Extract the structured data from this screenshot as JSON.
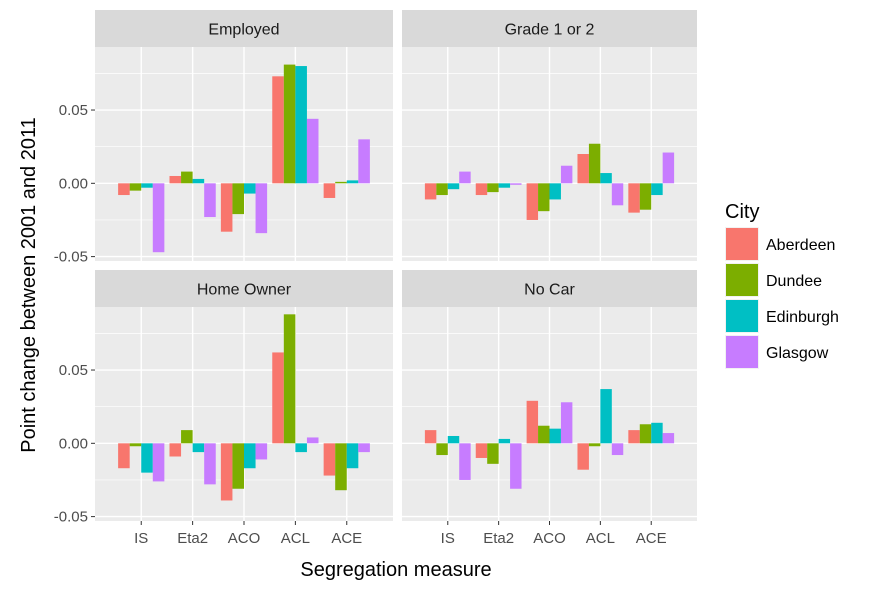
{
  "chart_data": {
    "type": "bar",
    "xlabel": "Segregation measure",
    "ylabel": "Point change between 2001 and 2011",
    "categories": [
      "IS",
      "Eta2",
      "ACO",
      "ACL",
      "ACE"
    ],
    "ylim": [
      -0.053,
      0.093
    ],
    "yticks": [
      -0.05,
      0.0,
      0.05
    ],
    "ytick_labels": [
      "-0.05",
      "0.00",
      "0.05"
    ],
    "grid": true,
    "legend": {
      "title": "City",
      "position": "right",
      "entries": [
        "Aberdeen",
        "Dundee",
        "Edinburgh",
        "Glasgow"
      ]
    },
    "colors": [
      "#F8766D",
      "#7CAE00",
      "#00BFC4",
      "#C77CFF"
    ],
    "panels": [
      {
        "title": "Employed",
        "series": [
          {
            "name": "Aberdeen",
            "values": [
              -0.008,
              0.005,
              -0.033,
              0.073,
              -0.01
            ]
          },
          {
            "name": "Dundee",
            "values": [
              -0.005,
              0.008,
              -0.021,
              0.081,
              0.001
            ]
          },
          {
            "name": "Edinburgh",
            "values": [
              -0.003,
              0.003,
              -0.007,
              0.08,
              0.002
            ]
          },
          {
            "name": "Glasgow",
            "values": [
              -0.047,
              -0.023,
              -0.034,
              0.044,
              0.03
            ]
          }
        ]
      },
      {
        "title": "Grade 1 or 2",
        "series": [
          {
            "name": "Aberdeen",
            "values": [
              -0.011,
              -0.008,
              -0.025,
              0.02,
              -0.02
            ]
          },
          {
            "name": "Dundee",
            "values": [
              -0.008,
              -0.006,
              -0.019,
              0.027,
              -0.018
            ]
          },
          {
            "name": "Edinburgh",
            "values": [
              -0.004,
              -0.003,
              -0.011,
              0.007,
              -0.008
            ]
          },
          {
            "name": "Glasgow",
            "values": [
              0.008,
              -0.001,
              0.012,
              -0.015,
              0.021
            ]
          }
        ]
      },
      {
        "title": "Home Owner",
        "series": [
          {
            "name": "Aberdeen",
            "values": [
              -0.017,
              -0.009,
              -0.039,
              0.062,
              -0.022
            ]
          },
          {
            "name": "Dundee",
            "values": [
              -0.002,
              0.009,
              -0.031,
              0.088,
              -0.032
            ]
          },
          {
            "name": "Edinburgh",
            "values": [
              -0.02,
              -0.006,
              -0.017,
              -0.006,
              -0.017
            ]
          },
          {
            "name": "Glasgow",
            "values": [
              -0.026,
              -0.028,
              -0.011,
              0.004,
              -0.006
            ]
          }
        ]
      },
      {
        "title": "No Car",
        "series": [
          {
            "name": "Aberdeen",
            "values": [
              0.009,
              -0.01,
              0.029,
              -0.018,
              0.009
            ]
          },
          {
            "name": "Dundee",
            "values": [
              -0.008,
              -0.014,
              0.012,
              -0.002,
              0.013
            ]
          },
          {
            "name": "Edinburgh",
            "values": [
              0.005,
              0.003,
              0.01,
              0.037,
              0.014
            ]
          },
          {
            "name": "Glasgow",
            "values": [
              -0.025,
              -0.031,
              0.028,
              -0.008,
              0.007
            ]
          }
        ]
      }
    ]
  }
}
